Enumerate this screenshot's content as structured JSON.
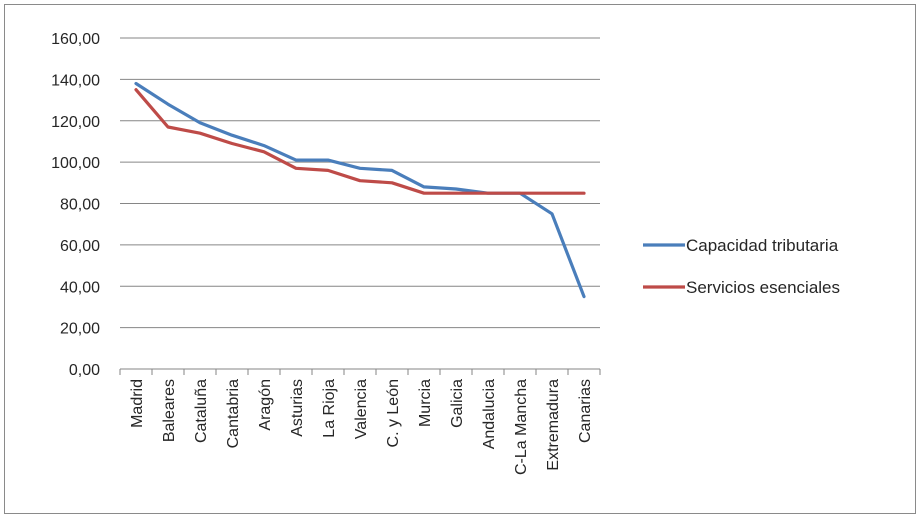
{
  "chart_data": {
    "type": "line",
    "categories": [
      "Madrid",
      "Baleares",
      "Cataluña",
      "Cantabria",
      "Aragón",
      "Asturias",
      "La Rioja",
      "Valencia",
      "C. y León",
      "Murcia",
      "Galicia",
      "Andalucia",
      "C-La Mancha",
      "Extremadura",
      "Canarias"
    ],
    "series": [
      {
        "name": "Capacidad tributaria",
        "color": "#4a7ebb",
        "values": [
          138,
          128,
          119,
          113,
          108,
          101,
          101,
          97,
          96,
          88,
          87,
          85,
          85,
          75,
          35
        ]
      },
      {
        "name": "Servicios esenciales",
        "color": "#be4b48",
        "values": [
          135,
          117,
          114,
          109,
          105,
          97,
          96,
          91,
          90,
          85,
          85,
          85,
          85,
          85,
          85
        ]
      }
    ],
    "y_ticks": [
      "0,00",
      "20,00",
      "40,00",
      "60,00",
      "80,00",
      "100,00",
      "120,00",
      "140,00",
      "160,00"
    ],
    "ylim": [
      0,
      160
    ],
    "grid": true,
    "legend_position": "right",
    "title": "",
    "xlabel": "",
    "ylabel": ""
  }
}
